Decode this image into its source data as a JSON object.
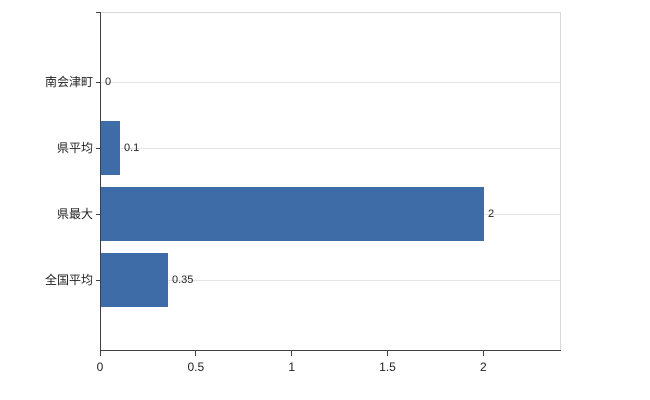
{
  "chart_data": {
    "type": "bar",
    "orientation": "horizontal",
    "title": "",
    "categories": [
      "南会津町",
      "県平均",
      "県最大",
      "全国平均"
    ],
    "values": [
      0,
      0.1,
      2,
      0.35
    ],
    "value_labels": [
      "0",
      "0.1",
      "2",
      "0.35"
    ],
    "xticks": [
      0,
      0.5,
      1,
      1.5,
      2
    ],
    "xtick_labels": [
      "0",
      "0.5",
      "1",
      "1.5",
      "2"
    ],
    "xlim": [
      0,
      2.4
    ],
    "grid": true,
    "legend": false,
    "colors": {
      "bar": "#3d6ca6",
      "axis": "#404040",
      "grid": "#e4e4e4",
      "plot_border": "#d9d9d9",
      "text": "#222222"
    }
  }
}
